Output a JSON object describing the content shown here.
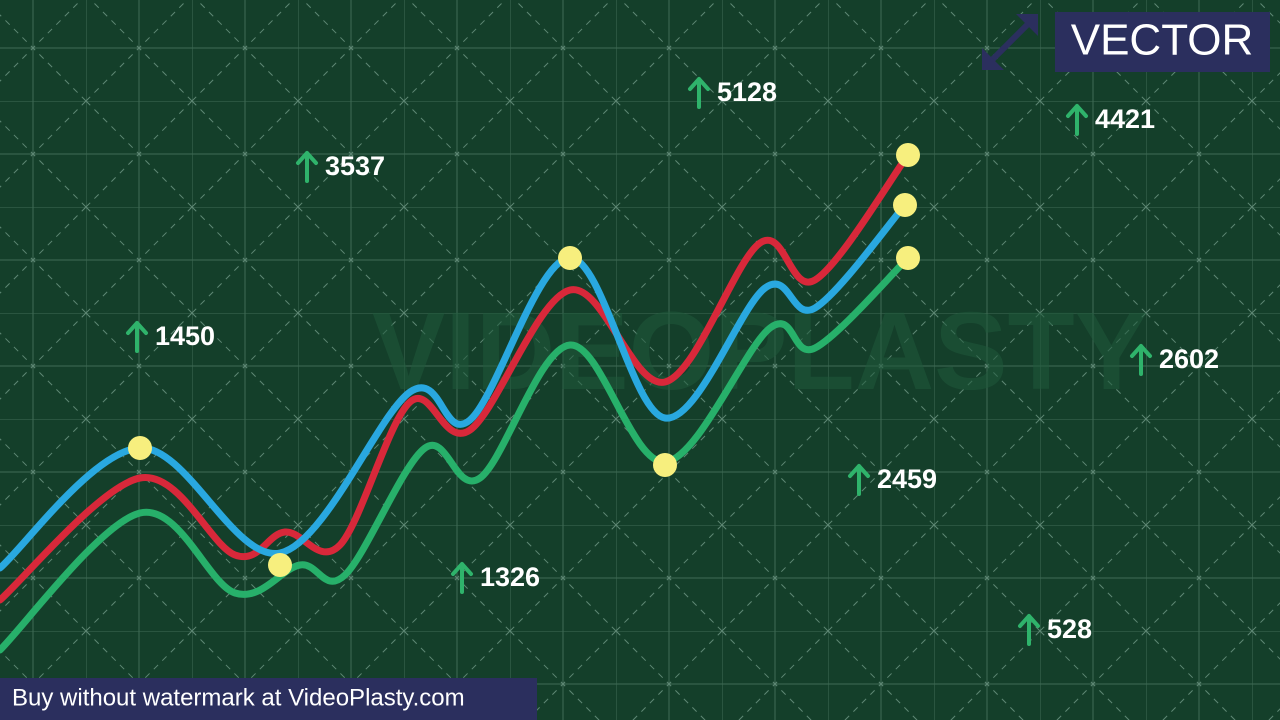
{
  "badge": "VECTOR",
  "watermark": "VIDEOPLASTY",
  "indicators": [
    5128,
    4421,
    3537,
    1450,
    2602,
    2459,
    1326,
    528
  ],
  "footer": "Buy without watermark at VideoPlasty.com"
}
